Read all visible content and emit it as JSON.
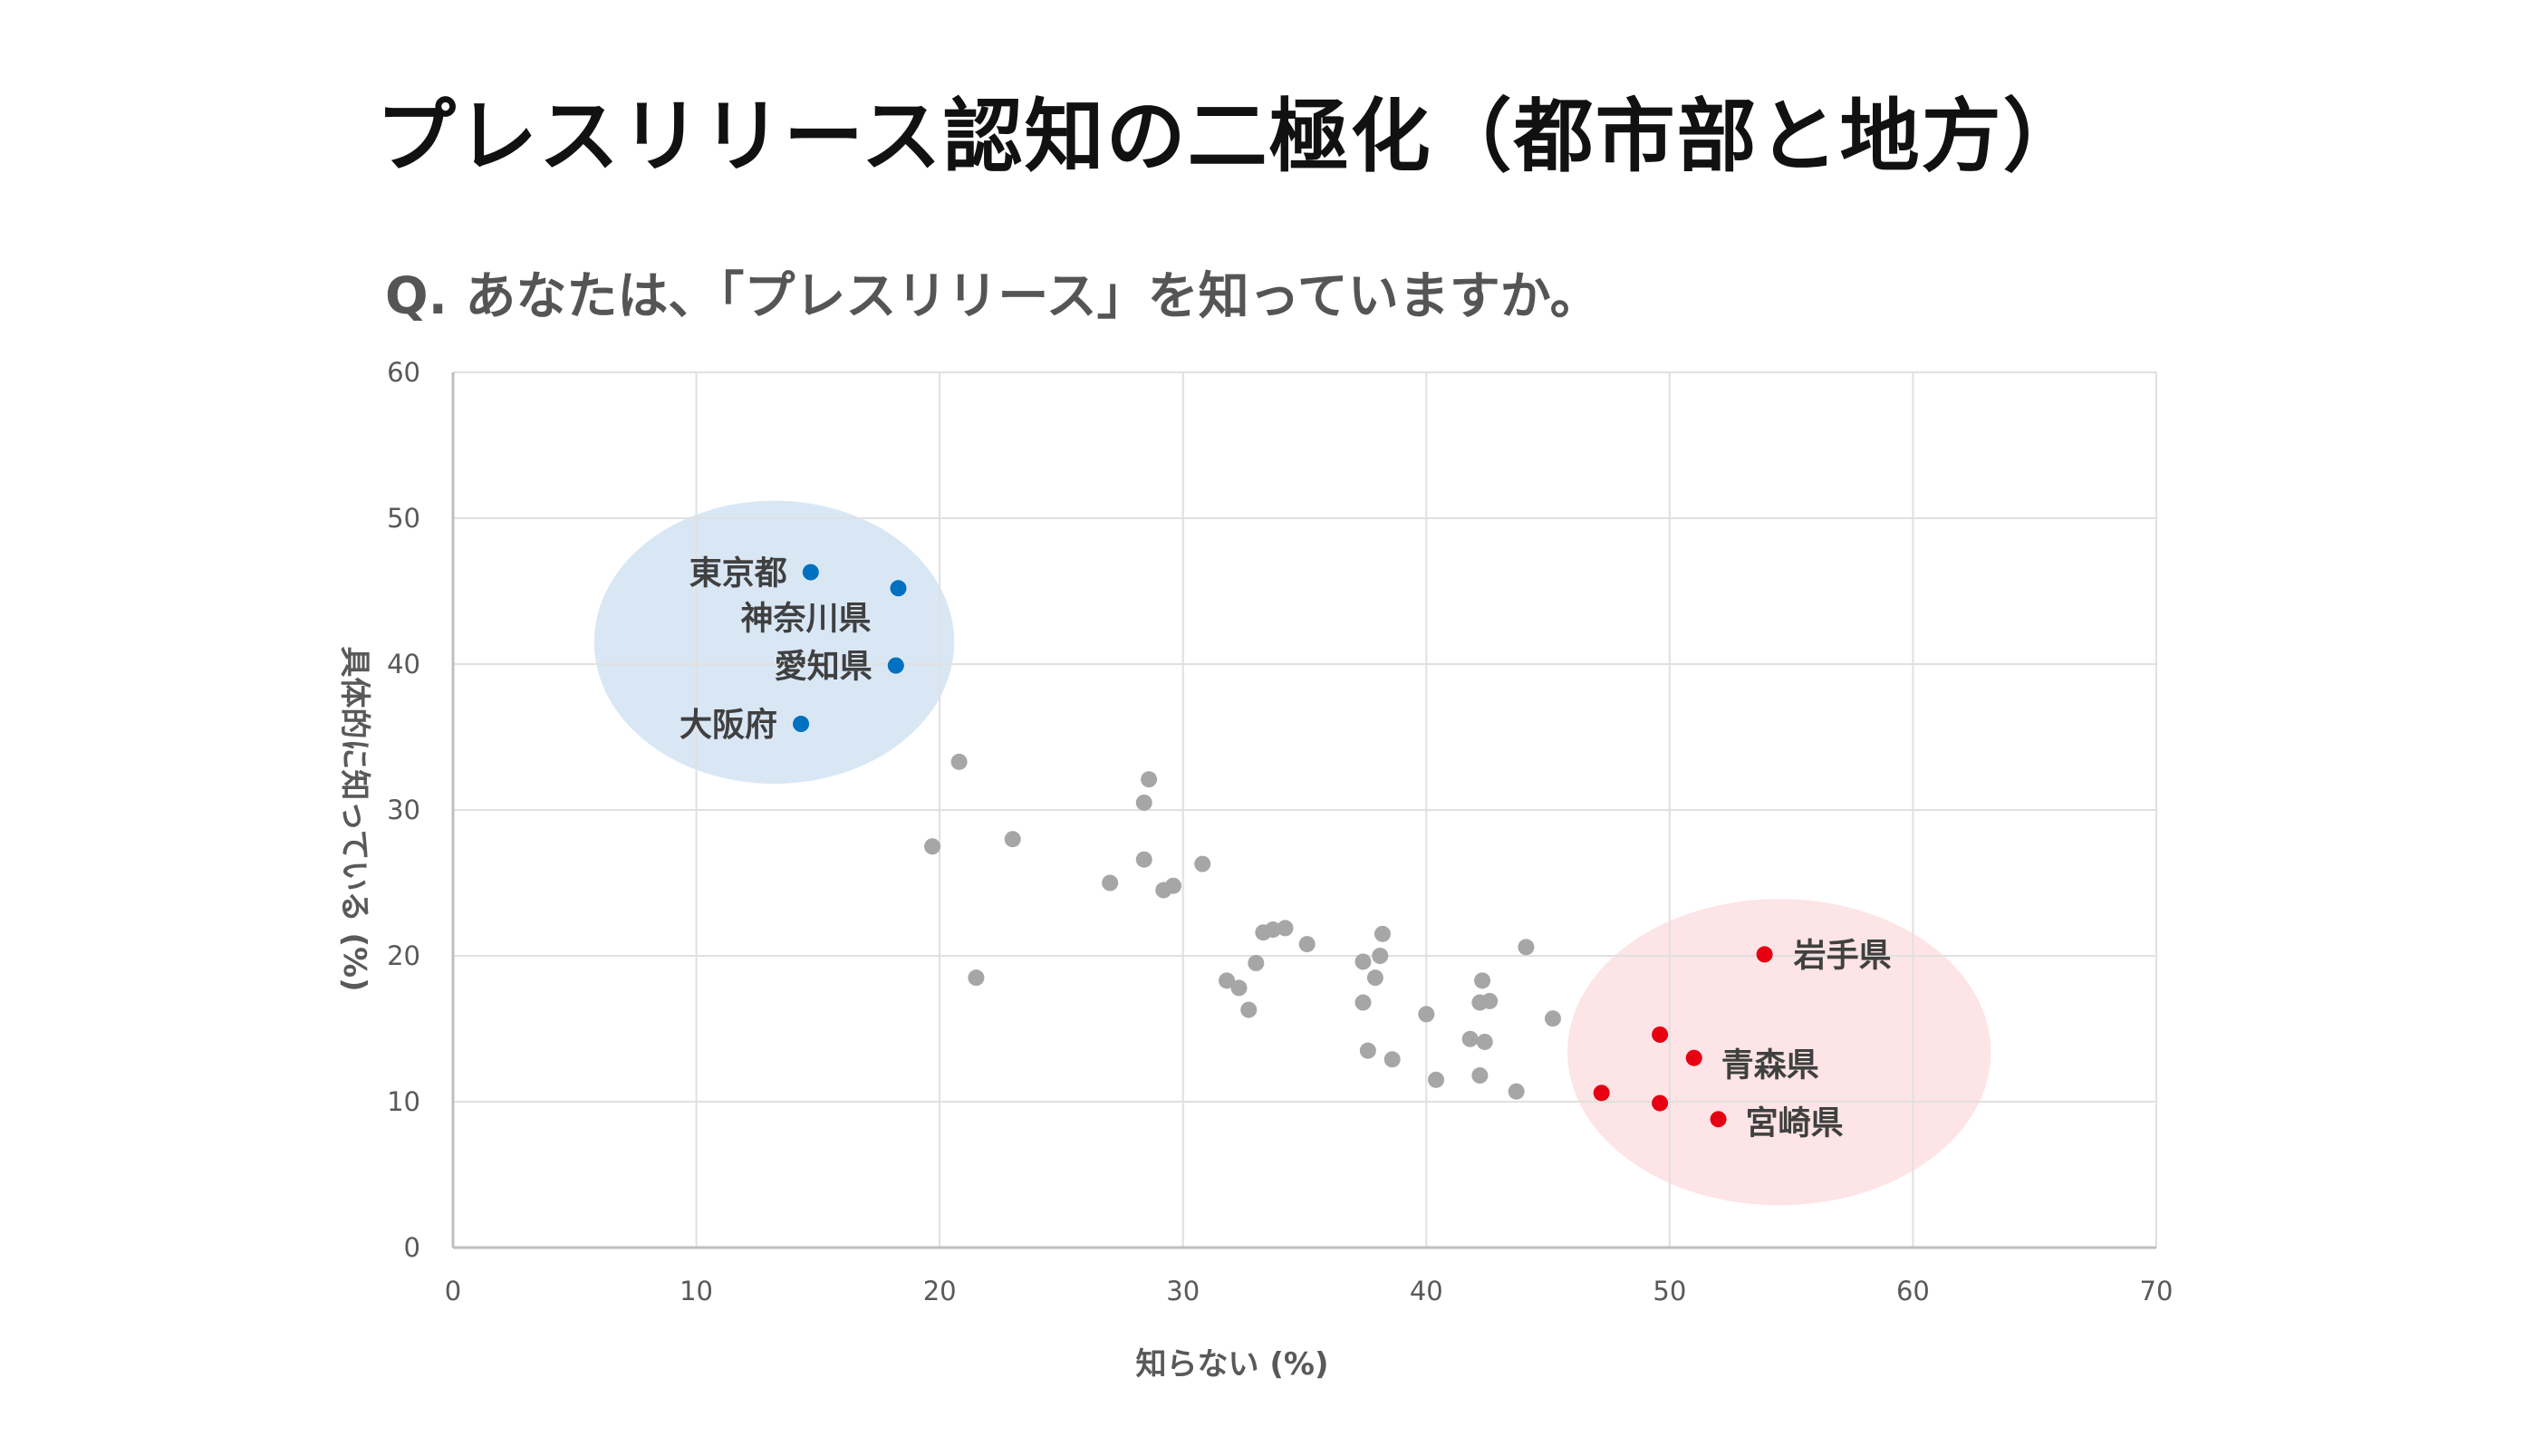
{
  "title": "プレスリリース認知の二極化（都市部と地方）",
  "question": "Q. あなたは、「プレスリリース」を知っていますか。",
  "colors": {
    "gray": "#a6a6a6",
    "blue": "#0070c0",
    "red": "#e60012",
    "blue_cluster": "#d9e7f5",
    "red_cluster": "#fde4e6",
    "grid": "#e0e0e0",
    "axis": "#bfbfbf"
  },
  "chart_data": {
    "type": "scatter",
    "xlabel": "知らない (%)",
    "ylabel": "具体的に知っている (%)",
    "xlim": [
      0,
      70
    ],
    "ylim": [
      0,
      60
    ],
    "x_ticks": [
      0,
      10,
      20,
      30,
      40,
      50,
      60,
      70
    ],
    "y_ticks": [
      0,
      10,
      20,
      30,
      40,
      50,
      60
    ],
    "grid": true,
    "clusters": [
      {
        "group": "urban",
        "color": "#d9e7f5",
        "cx": 13.2,
        "cy": 41.5,
        "rx": 7.4,
        "ry": 9.7
      },
      {
        "group": "rural",
        "color": "#fde4e6",
        "cx": 54.5,
        "cy": 13.4,
        "rx": 8.7,
        "ry": 10.5
      }
    ],
    "points": [
      {
        "x": 14.7,
        "y": 46.3,
        "group": "urban",
        "label": "東京都"
      },
      {
        "x": 18.3,
        "y": 45.2,
        "group": "urban",
        "label": "神奈川県"
      },
      {
        "x": 18.2,
        "y": 39.9,
        "group": "urban",
        "label": "愛知県"
      },
      {
        "x": 14.3,
        "y": 35.9,
        "group": "urban",
        "label": "大阪府"
      },
      {
        "x": 53.9,
        "y": 20.1,
        "group": "rural",
        "label": "岩手県"
      },
      {
        "x": 49.6,
        "y": 14.6,
        "group": "rural",
        "label": ""
      },
      {
        "x": 51.0,
        "y": 13.0,
        "group": "rural",
        "label": "青森県"
      },
      {
        "x": 47.2,
        "y": 10.6,
        "group": "rural",
        "label": ""
      },
      {
        "x": 49.6,
        "y": 9.9,
        "group": "rural",
        "label": ""
      },
      {
        "x": 52.0,
        "y": 8.8,
        "group": "rural",
        "label": "宮崎県"
      },
      {
        "x": 20.8,
        "y": 33.3,
        "group": "other",
        "label": ""
      },
      {
        "x": 19.7,
        "y": 27.5,
        "group": "other",
        "label": ""
      },
      {
        "x": 21.5,
        "y": 18.5,
        "group": "other",
        "label": ""
      },
      {
        "x": 23.0,
        "y": 28.0,
        "group": "other",
        "label": ""
      },
      {
        "x": 27.0,
        "y": 25.0,
        "group": "other",
        "label": ""
      },
      {
        "x": 28.6,
        "y": 32.1,
        "group": "other",
        "label": ""
      },
      {
        "x": 28.4,
        "y": 30.5,
        "group": "other",
        "label": ""
      },
      {
        "x": 28.4,
        "y": 26.6,
        "group": "other",
        "label": ""
      },
      {
        "x": 29.2,
        "y": 24.5,
        "group": "other",
        "label": ""
      },
      {
        "x": 29.6,
        "y": 24.8,
        "group": "other",
        "label": ""
      },
      {
        "x": 30.8,
        "y": 26.3,
        "group": "other",
        "label": ""
      },
      {
        "x": 31.8,
        "y": 18.3,
        "group": "other",
        "label": ""
      },
      {
        "x": 32.3,
        "y": 17.8,
        "group": "other",
        "label": ""
      },
      {
        "x": 32.7,
        "y": 16.3,
        "group": "other",
        "label": ""
      },
      {
        "x": 33.0,
        "y": 19.5,
        "group": "other",
        "label": ""
      },
      {
        "x": 33.3,
        "y": 21.6,
        "group": "other",
        "label": ""
      },
      {
        "x": 33.7,
        "y": 21.8,
        "group": "other",
        "label": ""
      },
      {
        "x": 34.2,
        "y": 21.9,
        "group": "other",
        "label": ""
      },
      {
        "x": 35.1,
        "y": 20.8,
        "group": "other",
        "label": ""
      },
      {
        "x": 37.4,
        "y": 19.6,
        "group": "other",
        "label": ""
      },
      {
        "x": 37.4,
        "y": 16.8,
        "group": "other",
        "label": ""
      },
      {
        "x": 37.6,
        "y": 13.5,
        "group": "other",
        "label": ""
      },
      {
        "x": 37.9,
        "y": 18.5,
        "group": "other",
        "label": ""
      },
      {
        "x": 38.1,
        "y": 20.0,
        "group": "other",
        "label": ""
      },
      {
        "x": 38.2,
        "y": 21.5,
        "group": "other",
        "label": ""
      },
      {
        "x": 38.6,
        "y": 12.9,
        "group": "other",
        "label": ""
      },
      {
        "x": 40.0,
        "y": 16.0,
        "group": "other",
        "label": ""
      },
      {
        "x": 40.4,
        "y": 11.5,
        "group": "other",
        "label": ""
      },
      {
        "x": 41.8,
        "y": 14.3,
        "group": "other",
        "label": ""
      },
      {
        "x": 42.2,
        "y": 11.8,
        "group": "other",
        "label": ""
      },
      {
        "x": 42.2,
        "y": 16.8,
        "group": "other",
        "label": ""
      },
      {
        "x": 42.3,
        "y": 18.3,
        "group": "other",
        "label": ""
      },
      {
        "x": 42.4,
        "y": 14.1,
        "group": "other",
        "label": ""
      },
      {
        "x": 42.6,
        "y": 16.9,
        "group": "other",
        "label": ""
      },
      {
        "x": 43.7,
        "y": 10.7,
        "group": "other",
        "label": ""
      },
      {
        "x": 44.1,
        "y": 20.6,
        "group": "other",
        "label": ""
      },
      {
        "x": 45.2,
        "y": 15.7,
        "group": "other",
        "label": ""
      }
    ]
  }
}
